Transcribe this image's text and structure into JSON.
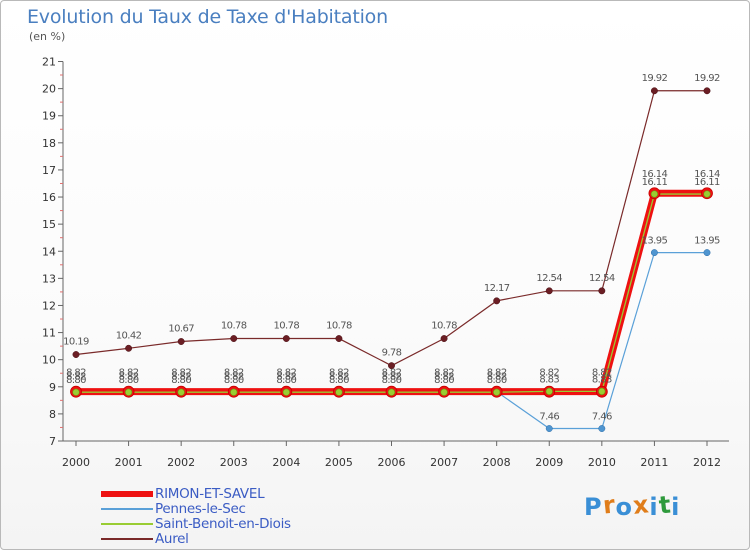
{
  "header": {
    "title": "Evolution du Taux de Taxe d'Habitation",
    "unit": "(en %)"
  },
  "colors": {
    "title": "#4a7fc0",
    "rimon": "#ee1111",
    "rimon_marker": "#99cc33",
    "pennes": "#5aa0d8",
    "saint_benoit": "#99cc33",
    "aurel": "#7a2a2a",
    "axis_text": "#333333",
    "point_label": "#555555"
  },
  "chart_data": {
    "type": "line",
    "title": "Evolution du Taux de Taxe d'Habitation",
    "ylabel": "(en %)",
    "xlabel": "",
    "x": [
      "2000",
      "2001",
      "2002",
      "2003",
      "2004",
      "2005",
      "2006",
      "2007",
      "2008",
      "2009",
      "2010",
      "2011",
      "2012"
    ],
    "yticks": [
      "7",
      "8",
      "9",
      "10",
      "11",
      "12",
      "13",
      "14",
      "15",
      "16",
      "17",
      "18",
      "19",
      "20",
      "21"
    ],
    "ylim": [
      7,
      21
    ],
    "grid": false,
    "legend_position": "bottom-left",
    "series": [
      {
        "name": "RIMON-ET-SAVEL",
        "color": "#ee1111",
        "values": [
          8.82,
          8.82,
          8.82,
          8.82,
          8.82,
          8.82,
          8.82,
          8.82,
          8.82,
          8.82,
          8.82,
          16.14,
          16.14
        ],
        "labels": [
          "8.82",
          "8.82",
          "8.82",
          "8.82",
          "8.82",
          "8.82",
          "8.82",
          "8.82",
          "8.82",
          "8.82",
          "8.82",
          "16.14",
          "16.14"
        ]
      },
      {
        "name": "Pennes-le-Sec",
        "color": "#5aa0d8",
        "values": [
          8.82,
          8.82,
          8.82,
          8.82,
          8.82,
          8.82,
          8.82,
          8.82,
          8.82,
          7.46,
          7.46,
          13.95,
          13.95
        ],
        "labels": [
          "8.82",
          "8.82",
          "8.82",
          "8.82",
          "8.82",
          "8.82",
          "8.82",
          "8.82",
          "8.82",
          "7.46",
          "7.46",
          "13.95",
          "13.95"
        ]
      },
      {
        "name": "Saint-Benoit-en-Diois",
        "color": "#99cc33",
        "values": [
          8.8,
          8.8,
          8.8,
          8.8,
          8.8,
          8.8,
          8.8,
          8.8,
          8.8,
          8.83,
          8.83,
          16.11,
          16.11
        ],
        "labels": [
          "8.80",
          "8.80",
          "8.80",
          "8.80",
          "8.80",
          "8.80",
          "8.80",
          "8.80",
          "8.80",
          "8.83",
          "8.83",
          "16.11",
          "16.11"
        ]
      },
      {
        "name": "Aurel",
        "color": "#7a2a2a",
        "values": [
          10.19,
          10.42,
          10.67,
          10.78,
          10.78,
          10.78,
          9.78,
          10.78,
          12.17,
          12.54,
          12.54,
          19.92,
          19.92
        ],
        "labels": [
          "10.19",
          "10.42",
          "10.67",
          "10.78",
          "10.78",
          "10.78",
          "9.78",
          "10.78",
          "12.17",
          "12.54",
          "12.54",
          "19.92",
          "19.92"
        ]
      }
    ]
  },
  "legend": {
    "items": [
      "RIMON-ET-SAVEL",
      "Pennes-le-Sec",
      "Saint-Benoit-en-Diois",
      "Aurel"
    ]
  },
  "logo": {
    "letters": [
      "P",
      "r",
      "o",
      "x",
      "i",
      "t",
      "i"
    ],
    "letter_colors": [
      "#3a8fd6",
      "#e07d1a",
      "#3a8fd6",
      "#e07d1a",
      "#3a8fd6",
      "#2e9a3c",
      "#3a8fd6"
    ]
  }
}
